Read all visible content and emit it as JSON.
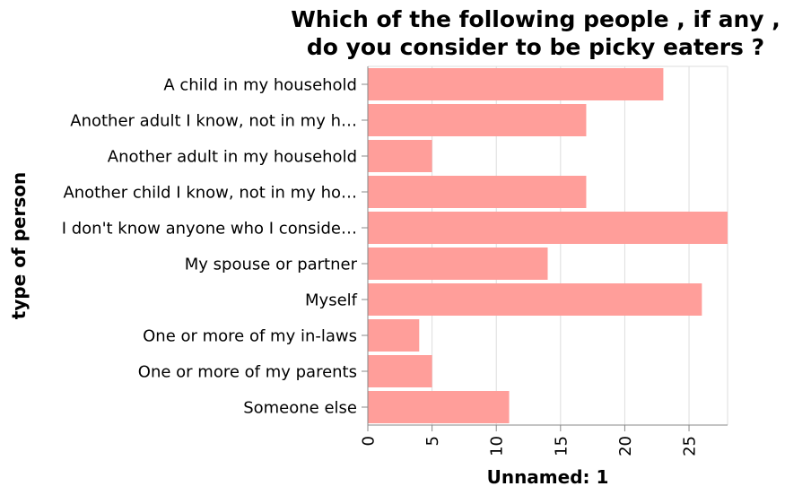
{
  "chart_data": {
    "type": "bar",
    "orientation": "horizontal",
    "title": [
      "Which of the following people , if any ,",
      "do you consider to be picky eaters ?"
    ],
    "xlabel": "Unnamed: 1",
    "ylabel": "type of person",
    "categories": [
      "A child in my household",
      "Another adult I know, not in my h…",
      "Another adult in my household",
      "Another child I know, not in my ho…",
      "I don't know anyone who I conside…",
      "My spouse or partner",
      "Myself",
      "One or more of my in-laws",
      "One or more of my parents",
      "Someone else"
    ],
    "values": [
      23,
      17,
      5,
      17,
      28,
      14,
      26,
      4,
      5,
      11
    ],
    "xlim": [
      0,
      28
    ],
    "xticks": [
      0,
      5,
      10,
      15,
      20,
      25
    ],
    "grid": true,
    "bar_color": "#ff9e9a"
  }
}
